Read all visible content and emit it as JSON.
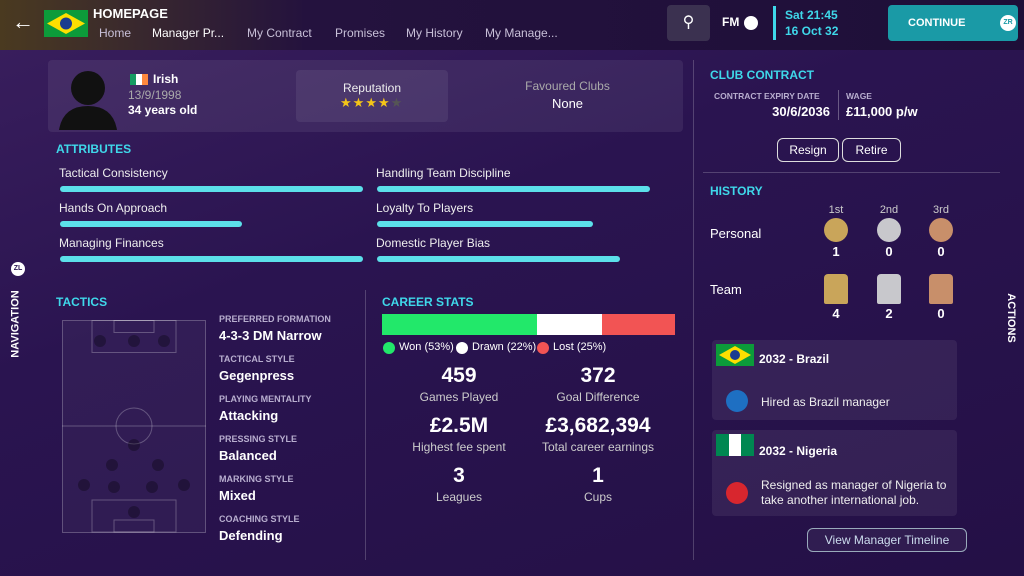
{
  "header": {
    "title": "HOMEPAGE",
    "tabs": [
      "Home",
      "Manager Pr...",
      "My Contract",
      "Promises",
      "My History",
      "My Manage..."
    ],
    "logo": "FM",
    "time": "Sat 21:45",
    "date": "16 Oct 32",
    "continue": "CONTINUE",
    "continue_key": "ZR"
  },
  "side": {
    "navigation": "NAVIGATION",
    "navigation_key": "ZL",
    "actions": "ACTIONS"
  },
  "profile": {
    "nationality": "Irish",
    "dob": "13/9/1998",
    "age": "34 years old",
    "reputation_label": "Reputation",
    "reputation_stars": 4,
    "reputation_max": 5,
    "favoured_label": "Favoured Clubs",
    "favoured_value": "None"
  },
  "attributes": {
    "title": "ATTRIBUTES",
    "items": [
      {
        "name": "Tactical Consistency",
        "value": 100
      },
      {
        "name": "Handling Team Discipline",
        "value": 100
      },
      {
        "name": "Hands On Approach",
        "value": 60
      },
      {
        "name": "Loyalty To Players",
        "value": 79
      },
      {
        "name": "Managing Finances",
        "value": 100
      },
      {
        "name": "Domestic Player Bias",
        "value": 89
      }
    ]
  },
  "tactics": {
    "title": "TACTICS",
    "items": [
      {
        "label": "PREFERRED FORMATION",
        "value": "4-3-3 DM Narrow"
      },
      {
        "label": "TACTICAL STYLE",
        "value": "Gegenpress"
      },
      {
        "label": "PLAYING MENTALITY",
        "value": "Attacking"
      },
      {
        "label": "PRESSING STYLE",
        "value": "Balanced"
      },
      {
        "label": "MARKING STYLE",
        "value": "Mixed"
      },
      {
        "label": "COACHING STYLE",
        "value": "Defending"
      }
    ]
  },
  "career": {
    "title": "CAREER STATS",
    "segments": [
      {
        "label": "Won (53%)",
        "value": 53,
        "color": "#22e86a"
      },
      {
        "label": "Drawn (22%)",
        "value": 22,
        "color": "#ffffff"
      },
      {
        "label": "Lost (25%)",
        "value": 25,
        "color": "#f25454"
      }
    ],
    "stats": [
      {
        "value": 459,
        "label": "Games Played"
      },
      {
        "value": 372,
        "label": "Goal Difference"
      },
      {
        "value": "£2.5M",
        "label": "Highest fee spent"
      },
      {
        "value": "£3,682,394",
        "label": "Total career earnings"
      },
      {
        "value": 3,
        "label": "Leagues"
      },
      {
        "value": 1,
        "label": "Cups"
      }
    ]
  },
  "contract": {
    "title": "CLUB CONTRACT",
    "expiry_label": "CONTRACT EXPIRY DATE",
    "expiry": "30/6/2036",
    "wage_label": "WAGE",
    "wage": "£11,000 p/w",
    "buttons": [
      "Resign",
      "Retire"
    ]
  },
  "history": {
    "title": "HISTORY",
    "columns": [
      "1st",
      "2nd",
      "3rd"
    ],
    "rows": [
      {
        "label": "Personal",
        "counts": [
          1,
          0,
          0
        ]
      },
      {
        "label": "Team",
        "counts": [
          4,
          2,
          0
        ]
      }
    ],
    "entries": [
      {
        "title": "2032 - Brazil",
        "text": "Hired as Brazil manager"
      },
      {
        "title": "2032 - Nigeria",
        "text": "Resigned as manager of Nigeria to take another international job."
      }
    ],
    "link": "View Manager Timeline"
  }
}
